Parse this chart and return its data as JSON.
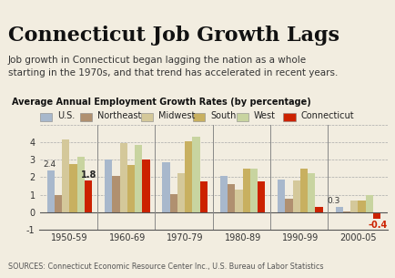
{
  "title": "Connecticut Job Growth Lags",
  "subtitle": "Job growth in Connecticut began lagging the nation as a whole\nstarting in the 1970s, and that trend has accelerated in recent years.",
  "chart_label": "Average Annual Employment Growth Rates (by percentage)",
  "source": "SOURCES: Connecticut Economic Resource Center Inc., U.S. Bureau of Labor Statistics",
  "categories": [
    "1950-59",
    "1960-69",
    "1970-79",
    "1980-89",
    "1990-99",
    "2000-05"
  ],
  "series": {
    "U.S.": [
      2.4,
      3.0,
      2.85,
      2.05,
      1.85,
      0.3
    ],
    "Northeast": [
      0.95,
      2.05,
      1.05,
      1.6,
      0.75,
      0.05
    ],
    "Midwest": [
      4.2,
      3.95,
      2.25,
      1.3,
      1.8,
      0.65
    ],
    "South": [
      2.75,
      2.7,
      4.05,
      2.5,
      2.5,
      0.65
    ],
    "West": [
      3.2,
      3.85,
      4.35,
      2.5,
      2.25,
      1.0
    ],
    "Connecticut": [
      1.8,
      3.0,
      1.75,
      1.75,
      0.3,
      -0.4
    ]
  },
  "colors": {
    "U.S.": "#a8b8cc",
    "Northeast": "#b09070",
    "Midwest": "#d4c89a",
    "South": "#c8b060",
    "West": "#c8d4a0",
    "Connecticut": "#cc2200"
  },
  "ylim": [
    -1,
    5
  ],
  "yticks": [
    -1,
    0,
    1,
    2,
    3,
    4,
    5
  ],
  "annotate_us_1950": "2.4",
  "annotate_ct_1950": "1.8",
  "annotate_us_2000": "0.3",
  "annotate_ct_2000": "-0.4",
  "background_color": "#f2ede0"
}
